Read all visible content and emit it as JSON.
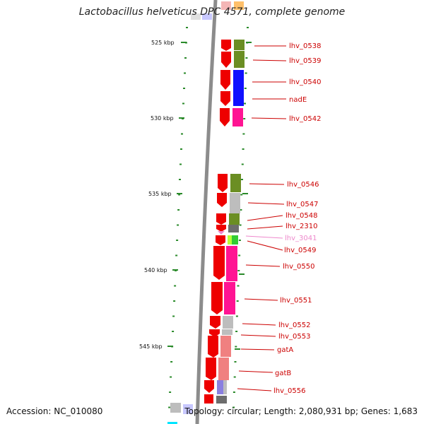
{
  "title": "Lactobacillus helveticus DPC 4571, complete genome",
  "footer": {
    "accession": "Accession: NC_010080",
    "topology": "Topology: circular; Length: 2,080,931 bp; Genes: 1,683"
  },
  "ticks": [
    {
      "label": "525 kbp"
    },
    {
      "label": "530 kbp"
    },
    {
      "label": "535 kbp"
    },
    {
      "label": "540 kbp"
    },
    {
      "label": "545 kbp"
    }
  ],
  "genes": [
    {
      "label": "lhv_0538",
      "label_color": "#cc0000"
    },
    {
      "label": "lhv_0539",
      "label_color": "#cc0000"
    },
    {
      "label": "lhv_0540",
      "label_color": "#cc0000"
    },
    {
      "label": "nadE",
      "label_color": "#cc0000"
    },
    {
      "label": "lhv_0542",
      "label_color": "#cc0000"
    },
    {
      "label": "lhv_0546",
      "label_color": "#cc0000"
    },
    {
      "label": "lhv_0547",
      "label_color": "#cc0000"
    },
    {
      "label": "lhv_0548",
      "label_color": "#cc0000"
    },
    {
      "label": "lhv_2310",
      "label_color": "#cc0000"
    },
    {
      "label": "lhv_3041",
      "label_color": "#ee88cc"
    },
    {
      "label": "lhv_0549",
      "label_color": "#cc0000"
    },
    {
      "label": "lhv_0550",
      "label_color": "#cc0000"
    },
    {
      "label": "lhv_0551",
      "label_color": "#cc0000"
    },
    {
      "label": "lhv_0552",
      "label_color": "#cc0000"
    },
    {
      "label": "lhv_0553",
      "label_color": "#cc0000"
    },
    {
      "label": "gatA",
      "label_color": "#cc0000"
    },
    {
      "label": "gatB",
      "label_color": "#cc0000"
    },
    {
      "label": "lhv_0556",
      "label_color": "#cc0000"
    }
  ],
  "colors": {
    "cds": "#ee0000",
    "backbone": "#8c8c8c",
    "tick": "#2a8a2a",
    "leader": "#cc0000",
    "cog_olive": "#6b8e23",
    "cog_blue": "#1010ff",
    "cog_pink": "#ff1493",
    "cog_gray": "#bdbdbd",
    "cog_darkgray": "#6d6d6d",
    "cog_green": "#33cc33",
    "cog_salmon": "#f08080",
    "cog_lavender": "#8a7fe0",
    "cog_orange": "#ffa500",
    "cog_cyan": "#00e5ff",
    "cog_lightlavender": "#c8c8ff"
  }
}
